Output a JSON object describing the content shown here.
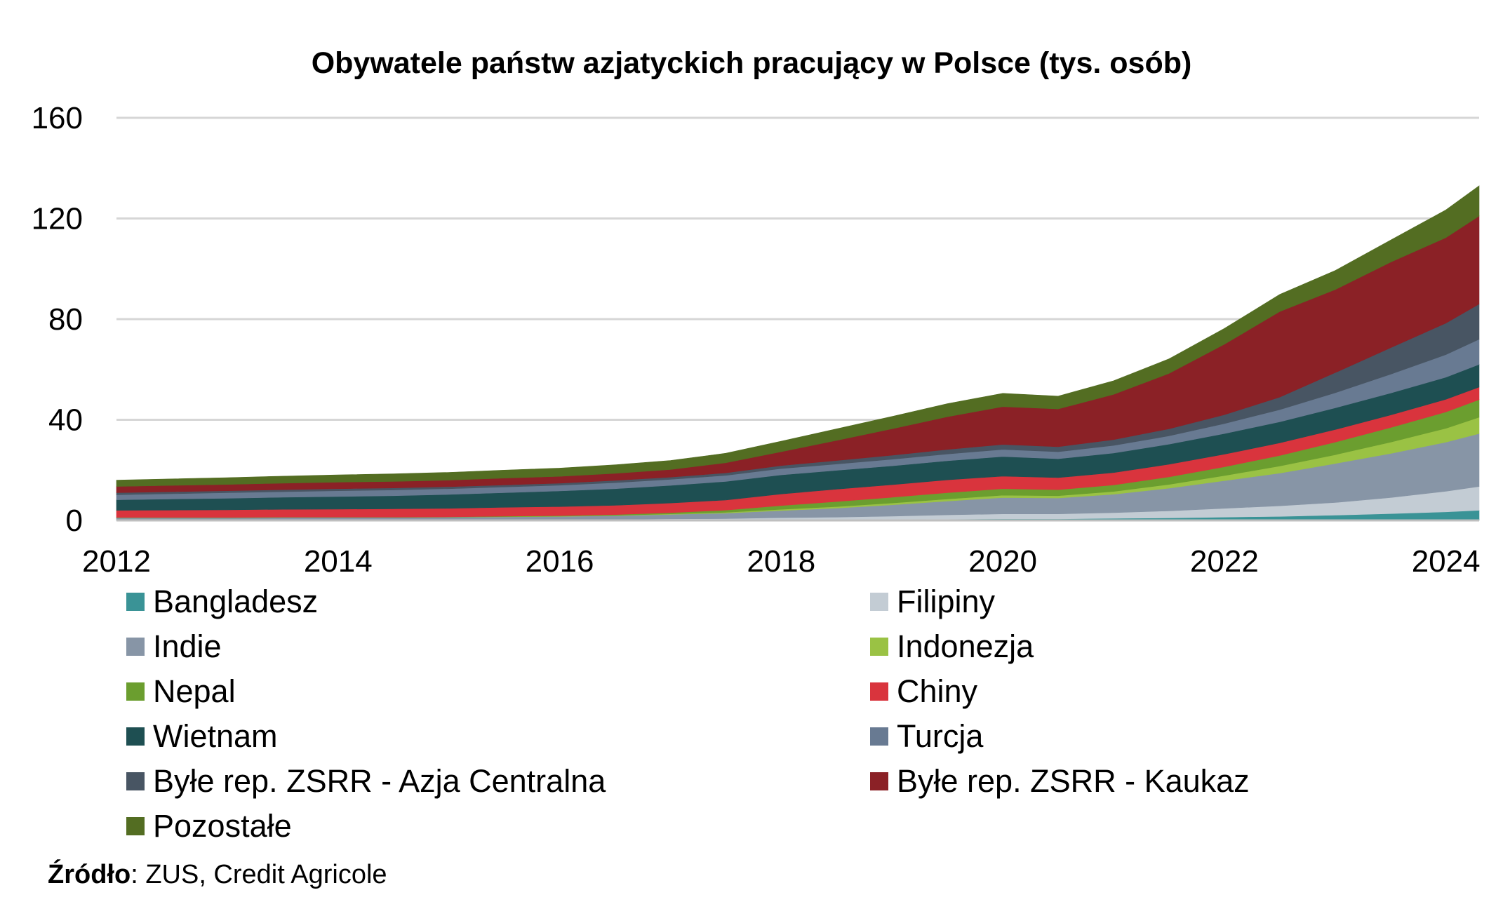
{
  "chart_data": {
    "type": "area",
    "stacked": true,
    "title": "Obywatele państw azjatyckich pracujący w Polsce (tys. osób)",
    "xlabel": "",
    "ylabel": "",
    "xlim": [
      2012,
      2024.3
    ],
    "ylim": [
      0,
      160
    ],
    "y_ticks": [
      "0",
      "40",
      "80",
      "120",
      "160"
    ],
    "x_ticks": [
      "2012",
      "2014",
      "2016",
      "2018",
      "2020",
      "2022",
      "2024"
    ],
    "grid": "horizontal",
    "legend_position": "bottom",
    "x": [
      2012,
      2012.5,
      2013,
      2013.5,
      2014,
      2014.5,
      2015,
      2015.5,
      2016,
      2016.5,
      2017,
      2017.5,
      2018,
      2018.5,
      2019,
      2019.5,
      2020,
      2020.5,
      2021,
      2021.5,
      2022,
      2022.5,
      2023,
      2023.5,
      2024,
      2024.3
    ],
    "series": [
      {
        "name": "Bangladesz",
        "color": "#3a9396",
        "values": [
          0.1,
          0.1,
          0.1,
          0.1,
          0.1,
          0.1,
          0.1,
          0.1,
          0.1,
          0.1,
          0.2,
          0.2,
          0.3,
          0.3,
          0.4,
          0.5,
          0.6,
          0.6,
          0.8,
          1.0,
          1.3,
          1.6,
          2.1,
          2.7,
          3.4,
          4.0
        ]
      },
      {
        "name": "Filipiny",
        "color": "#c3ccd4",
        "values": [
          0.1,
          0.1,
          0.1,
          0.1,
          0.1,
          0.1,
          0.1,
          0.1,
          0.2,
          0.3,
          0.4,
          0.5,
          0.8,
          1.0,
          1.3,
          1.7,
          2.0,
          2.0,
          2.3,
          2.8,
          3.5,
          4.2,
          5.0,
          6.4,
          8.2,
          9.5
        ]
      },
      {
        "name": "Indie",
        "color": "#8795a6",
        "values": [
          0.9,
          0.9,
          0.9,
          1.0,
          1.0,
          1.0,
          1.1,
          1.2,
          1.3,
          1.5,
          1.8,
          2.2,
          2.8,
          3.6,
          4.5,
          5.5,
          6.5,
          6.3,
          7.3,
          9.0,
          11.0,
          13.0,
          15.5,
          17.5,
          19.5,
          21.0
        ]
      },
      {
        "name": "Indonezja",
        "color": "#9ac244",
        "values": [
          0.0,
          0.0,
          0.0,
          0.0,
          0.0,
          0.0,
          0.0,
          0.1,
          0.1,
          0.1,
          0.2,
          0.3,
          0.5,
          0.6,
          0.7,
          0.8,
          0.9,
          0.9,
          1.1,
          1.5,
          2.0,
          2.8,
          3.5,
          4.5,
          5.5,
          6.5
        ]
      },
      {
        "name": "Nepal",
        "color": "#6b9e2f",
        "values": [
          0.1,
          0.1,
          0.1,
          0.1,
          0.1,
          0.1,
          0.1,
          0.2,
          0.2,
          0.3,
          0.5,
          0.9,
          1.5,
          2.0,
          2.3,
          2.5,
          2.6,
          2.4,
          2.6,
          3.0,
          3.5,
          4.2,
          5.0,
          5.8,
          6.5,
          7.0
        ]
      },
      {
        "name": "Chiny",
        "color": "#d9343d",
        "values": [
          2.8,
          2.9,
          3.0,
          3.1,
          3.2,
          3.3,
          3.4,
          3.5,
          3.6,
          3.7,
          3.8,
          4.0,
          4.6,
          4.9,
          5.0,
          5.1,
          5.0,
          4.8,
          4.9,
          5.0,
          5.0,
          5.0,
          5.0,
          5.0,
          5.0,
          5.0
        ]
      },
      {
        "name": "Wietnam",
        "color": "#1e4f52",
        "values": [
          4.2,
          4.4,
          4.6,
          4.8,
          5.0,
          5.2,
          5.5,
          5.8,
          6.2,
          6.6,
          7.0,
          7.4,
          7.6,
          7.5,
          7.5,
          7.6,
          7.8,
          7.5,
          7.8,
          8.0,
          8.2,
          8.4,
          8.6,
          8.7,
          8.8,
          9.0
        ]
      },
      {
        "name": "Turcja",
        "color": "#687a92",
        "values": [
          2.0,
          2.1,
          2.2,
          2.2,
          2.3,
          2.3,
          2.3,
          2.3,
          2.3,
          2.4,
          2.4,
          2.4,
          2.5,
          2.5,
          2.6,
          2.7,
          2.8,
          2.8,
          3.0,
          3.3,
          4.0,
          4.8,
          6.0,
          7.5,
          9.0,
          10.0
        ]
      },
      {
        "name": "Byłe rep. ZSRR - Azja Centralna",
        "color": "#485563",
        "values": [
          0.8,
          0.8,
          0.8,
          0.8,
          0.8,
          0.8,
          0.8,
          0.8,
          0.8,
          0.9,
          0.9,
          1.0,
          1.2,
          1.4,
          1.6,
          1.8,
          2.0,
          2.0,
          2.3,
          2.8,
          3.5,
          5.0,
          8.0,
          10.5,
          12.5,
          14.0
        ]
      },
      {
        "name": "Byłe rep. ZSRR - Kaukaz",
        "color": "#8b2126",
        "values": [
          2.5,
          2.5,
          2.5,
          2.6,
          2.6,
          2.6,
          2.6,
          2.7,
          2.7,
          2.8,
          3.0,
          4.0,
          5.5,
          8.0,
          10.5,
          13.0,
          15.0,
          15.0,
          18.0,
          22.0,
          28.0,
          34.0,
          33.0,
          34.0,
          34.0,
          35.0
        ]
      },
      {
        "name": "Pozostałe",
        "color": "#536d22",
        "values": [
          2.5,
          2.6,
          2.7,
          2.8,
          2.9,
          3.0,
          3.1,
          3.2,
          3.3,
          3.4,
          3.6,
          3.8,
          4.2,
          4.6,
          4.9,
          5.2,
          5.3,
          5.1,
          5.4,
          5.8,
          6.3,
          6.8,
          7.6,
          8.8,
          11.0,
          12.0
        ]
      }
    ]
  },
  "source_note": {
    "label": "Źródło",
    "text": ": ZUS, Credit Agricole"
  }
}
